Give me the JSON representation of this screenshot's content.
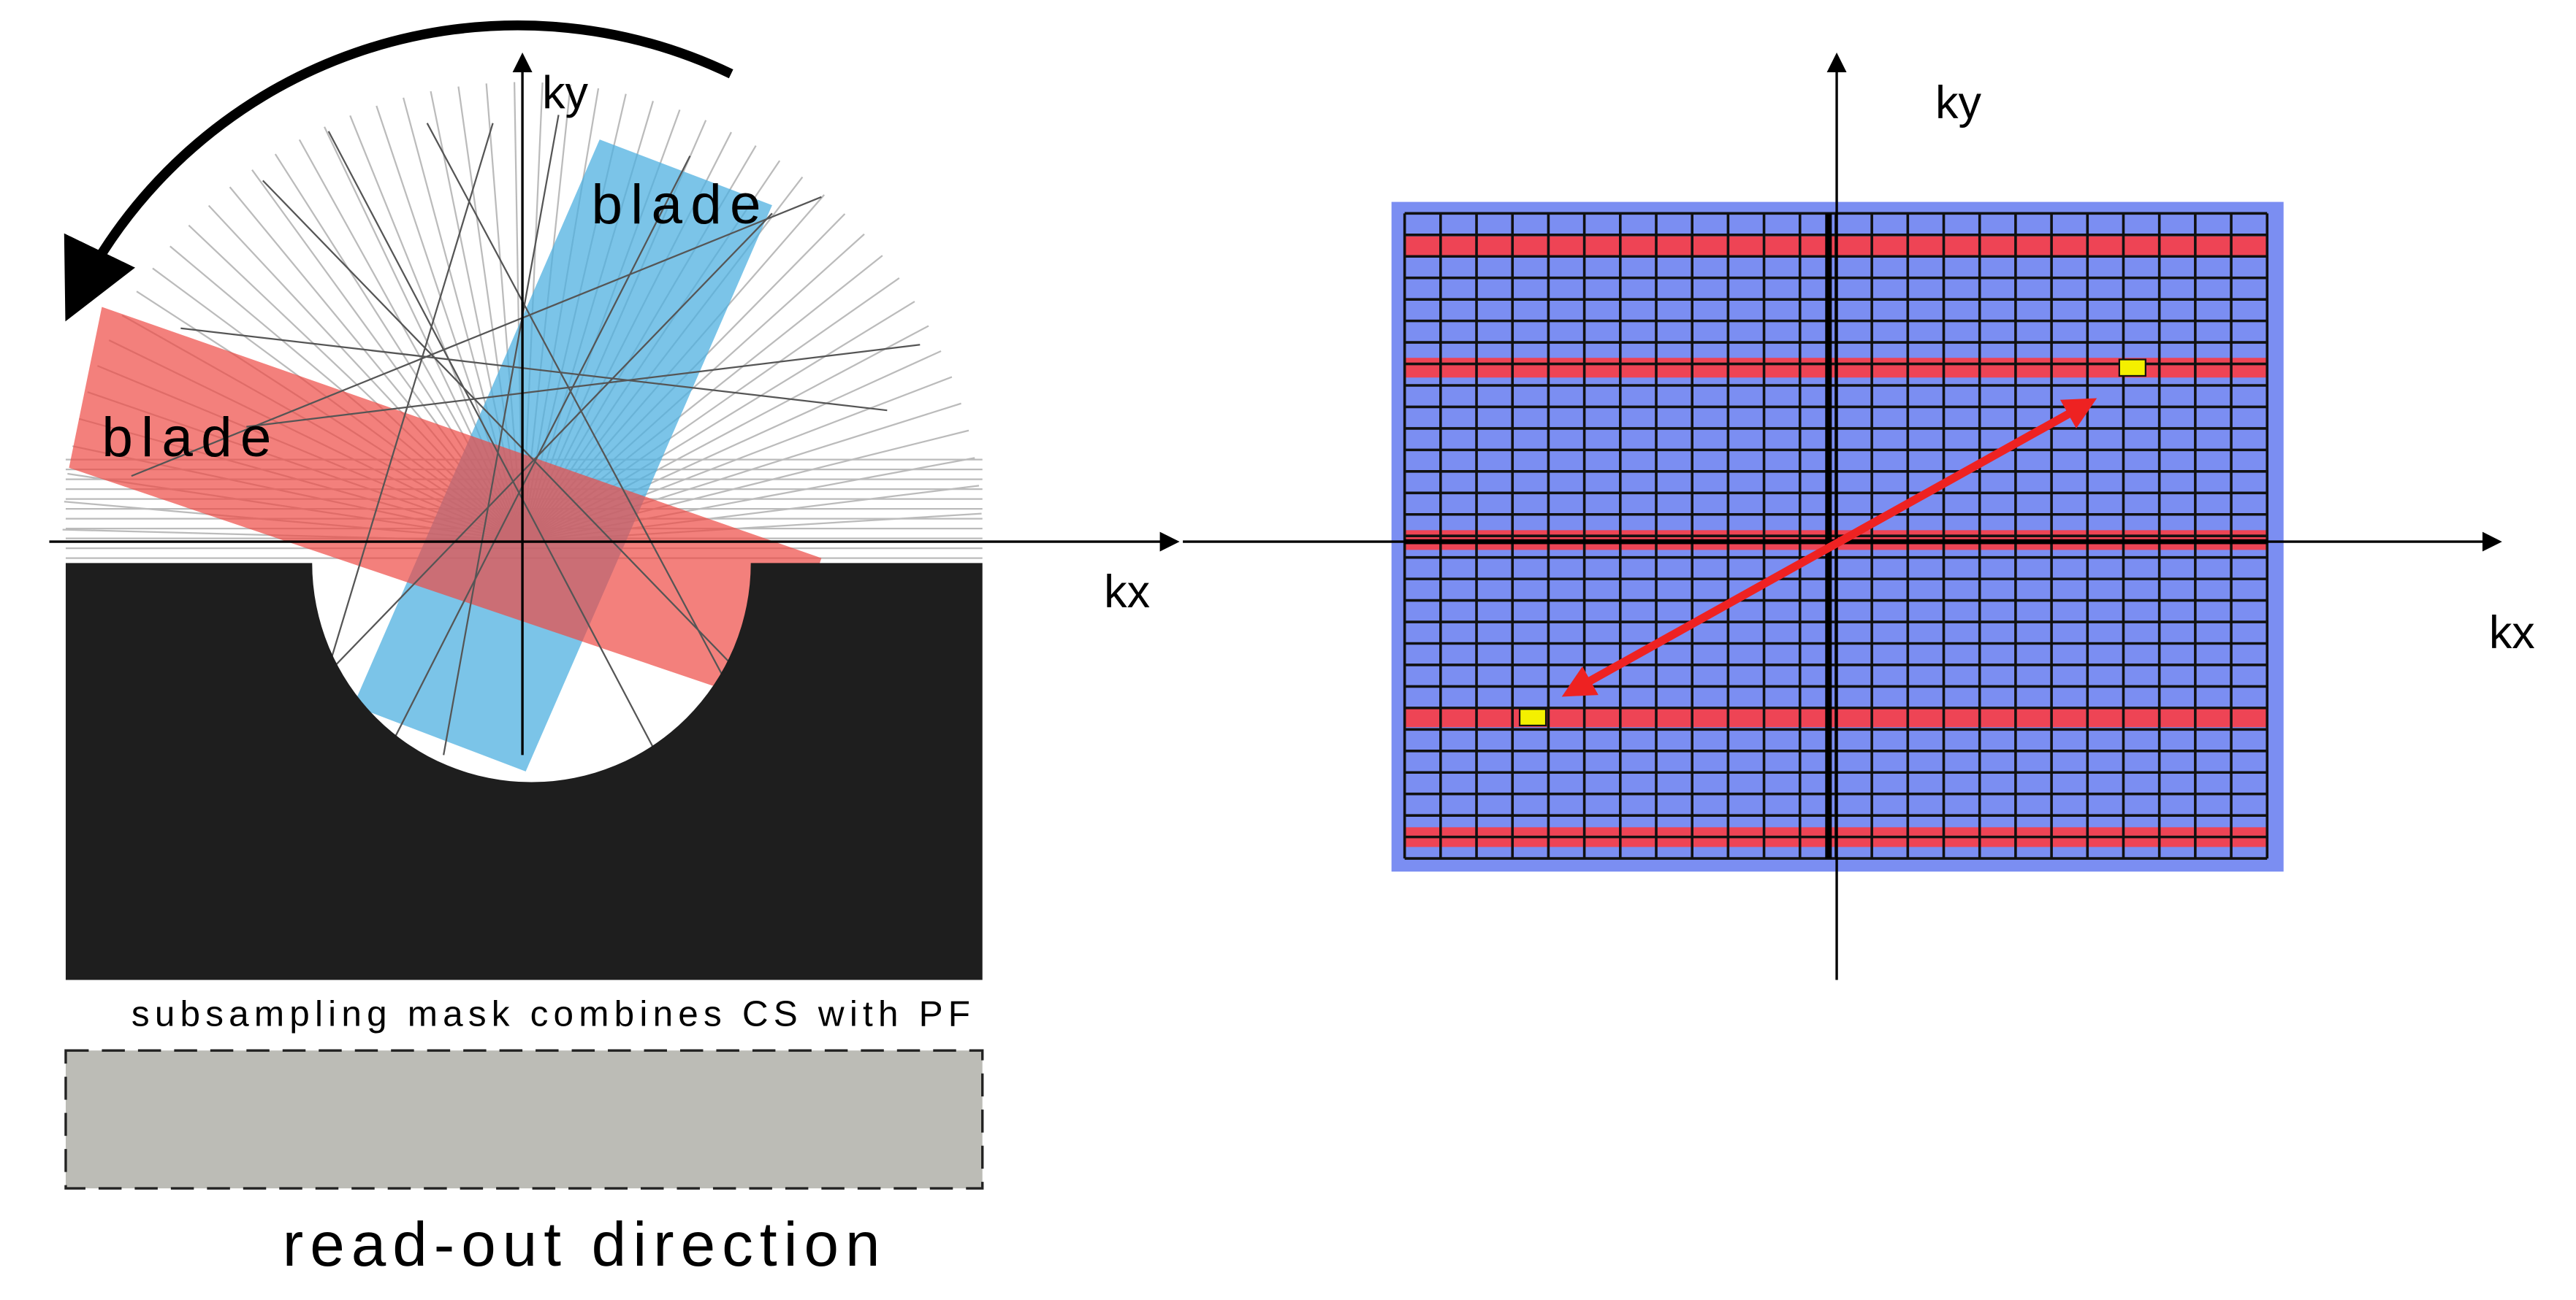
{
  "left_panel": {
    "axis_y_label": "ky",
    "axis_x_label": "kx",
    "blade_labels": [
      "blade",
      "blade"
    ],
    "mask_caption": "subsampling mask combines CS with PF",
    "readout_label": "read-out direction"
  },
  "right_panel": {
    "axis_y_label": "ky",
    "axis_x_label": "kx"
  }
}
